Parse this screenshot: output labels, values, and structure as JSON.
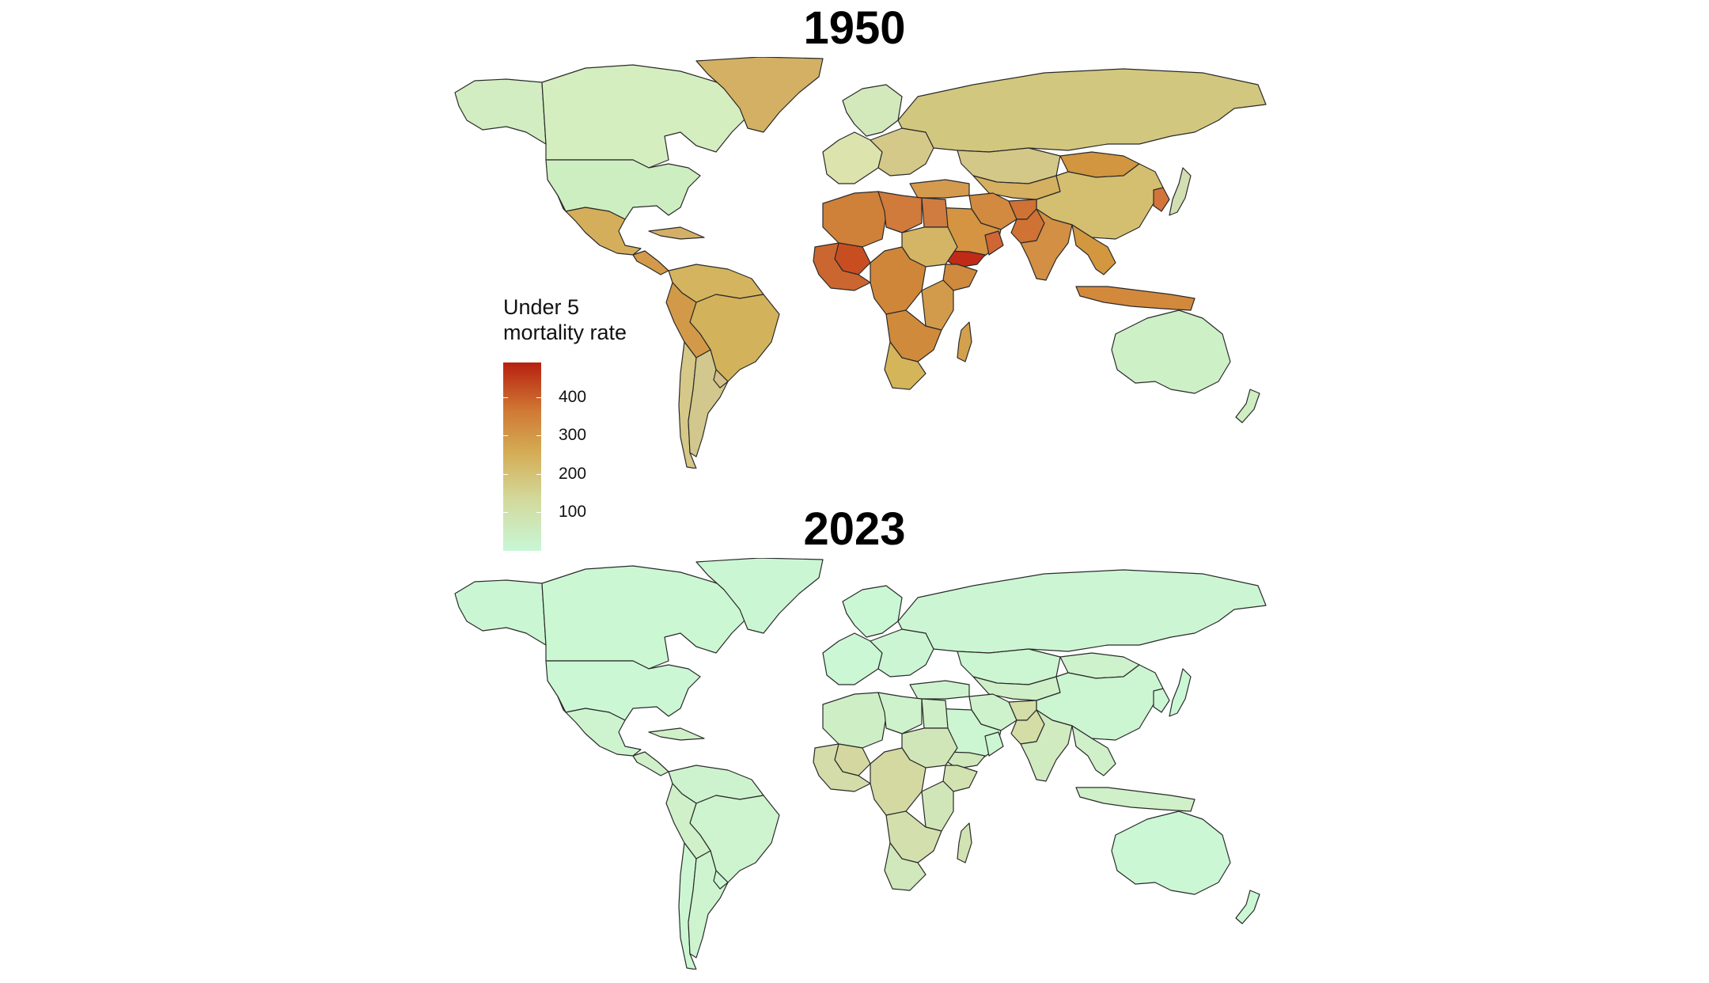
{
  "maps": [
    {
      "title": "1950",
      "regions": {
        "canada": "#d5eec0",
        "usa": "#cdeec1",
        "alaska": "#d2edc1",
        "mexico": "#d4ae5a",
        "central_america": "#d39a4c",
        "caribbean": "#d4b067",
        "greenland": "#d3b063",
        "south_america_n": "#d4b45e",
        "brazil": "#d3b25c",
        "peru_bolivia": "#d29a48",
        "argentina": "#d2c78c",
        "chile": "#d5c888",
        "uruguay": "#d4c08a",
        "europe_w": "#dde3ad",
        "europe_e": "#d5c989",
        "scandinavia": "#d3e9bc",
        "russia": "#d2c77f",
        "kazakhstan": "#d4c888",
        "central_asia": "#d4b060",
        "china": "#d4bf70",
        "mongolia": "#d1963f",
        "korea": "#d3743a",
        "japan": "#d2dfb3",
        "turkey": "#d49a4e",
        "iran": "#d28a40",
        "afghanistan": "#d07234",
        "pakistan": "#d07233",
        "india": "#d38f43",
        "arabia": "#d59442",
        "yemen": "#c12a17",
        "oman": "#cf6634",
        "southeast_asia": "#d2973f",
        "indonesia": "#d3893c",
        "australia": "#cdf0c6",
        "new_zealand": "#cfeec2",
        "north_africa": "#cf8039",
        "libya": "#d07a3c",
        "egypt": "#d07c40",
        "mali": "#c84e22",
        "west_africa": "#cc6630",
        "sudan": "#d3b565",
        "ethiopia": "#cf8a3e",
        "central_africa": "#d08639",
        "east_africa": "#d29b4b",
        "southern_africa": "#d08a3c",
        "south_africa": "#d4b55a",
        "madagascar": "#d3a04e"
      }
    },
    {
      "title": "2023",
      "regions": {
        "canada": "#cbf7d3",
        "usa": "#ccf7d4",
        "alaska": "#cbf6d3",
        "mexico": "#cdf4cf",
        "central_america": "#cff0c8",
        "caribbean": "#cff0c8",
        "greenland": "#cbf6d3",
        "south_america_n": "#cdf3ce",
        "brazil": "#cdf4cf",
        "peru_bolivia": "#cff0c8",
        "argentina": "#cdf4cf",
        "chile": "#ccf6d2",
        "uruguay": "#ccf6d2",
        "europe_w": "#cbf7d4",
        "europe_e": "#ccf6d3",
        "scandinavia": "#cbf8d4",
        "russia": "#ccf6d3",
        "kazakhstan": "#ccf5d1",
        "central_asia": "#ceefc7",
        "china": "#ccf5d1",
        "mongolia": "#cdf2cc",
        "korea": "#cbf7d4",
        "japan": "#cbf8d4",
        "turkey": "#cdf3ce",
        "iran": "#cdf2cc",
        "afghanistan": "#d3dea8",
        "pakistan": "#d3dda5",
        "india": "#d0ebc0",
        "arabia": "#ccf5d1",
        "yemen": "#d0e8bb",
        "oman": "#ccf6d2",
        "southeast_asia": "#cff0c8",
        "indonesia": "#cff0c8",
        "australia": "#cbf7d4",
        "new_zealand": "#cbf7d4",
        "north_africa": "#ceeec6",
        "libya": "#cdf2cc",
        "egypt": "#ceefc7",
        "mali": "#d4d8a0",
        "west_africa": "#d4dcaa",
        "sudan": "#d1e6b8",
        "ethiopia": "#d2e2b1",
        "central_africa": "#d4d9a2",
        "east_africa": "#d1e6b8",
        "southern_africa": "#d3e0ae",
        "south_africa": "#d0e8bb",
        "madagascar": "#d2e3b3"
      }
    }
  ],
  "legend": {
    "title_line1": "Under 5",
    "title_line2": "mortality rate",
    "ticks": [
      {
        "value": 400,
        "label": "400"
      },
      {
        "value": 300,
        "label": "300"
      },
      {
        "value": 200,
        "label": "200"
      },
      {
        "value": 100,
        "label": "100"
      }
    ],
    "range": [
      0,
      490
    ]
  }
}
